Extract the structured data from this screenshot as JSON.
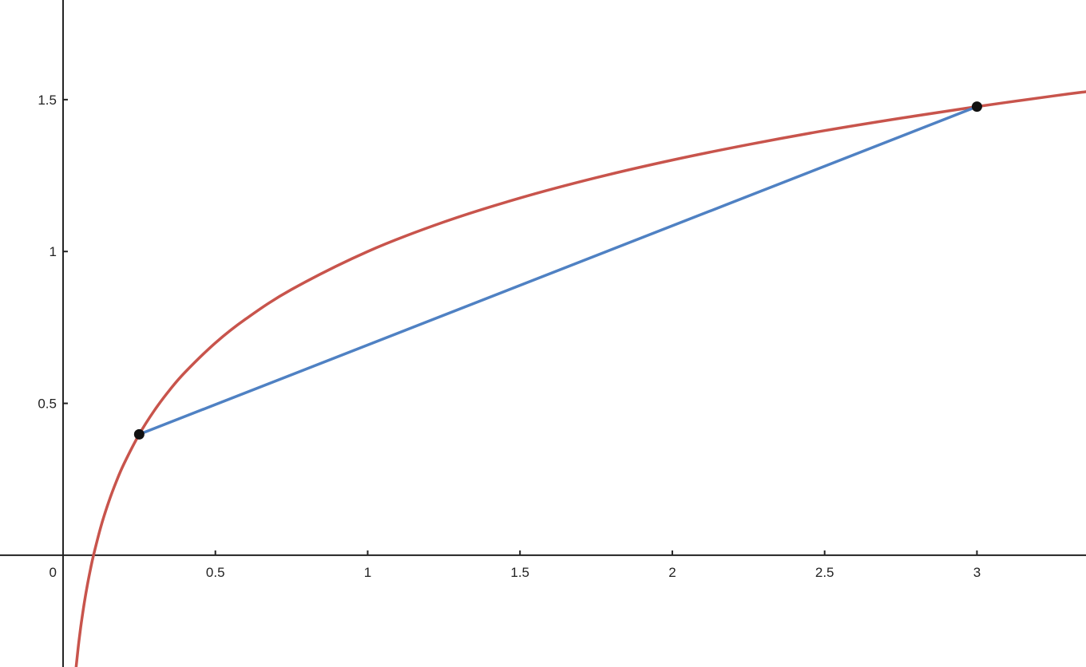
{
  "chart_data": {
    "type": "line",
    "title": "",
    "xlabel": "",
    "ylabel": "",
    "xlim": [
      -0.207,
      3.358
    ],
    "ylim": [
      -0.368,
      1.828
    ],
    "grid": false,
    "x_ticks": [
      0.5,
      1,
      1.5,
      2,
      2.5,
      3
    ],
    "x_tick_labels": [
      "0.5",
      "1",
      "1.5",
      "2",
      "2.5",
      "3"
    ],
    "y_ticks": [
      0.5,
      1,
      1.5
    ],
    "y_tick_labels": [
      "0.5",
      "1",
      "1.5"
    ],
    "origin_label": "0",
    "series": [
      {
        "kind": "curve",
        "color": "#c8544c",
        "points": [
          [
            0.043,
            -0.367
          ],
          [
            0.05,
            -0.301
          ],
          [
            0.055,
            -0.26
          ],
          [
            0.06,
            -0.222
          ],
          [
            0.07,
            -0.155
          ],
          [
            0.08,
            -0.097
          ],
          [
            0.09,
            -0.046
          ],
          [
            0.1,
            0
          ],
          [
            0.125,
            0.097
          ],
          [
            0.15,
            0.176
          ],
          [
            0.175,
            0.243
          ],
          [
            0.2,
            0.301
          ],
          [
            0.25,
            0.398
          ],
          [
            0.3,
            0.477
          ],
          [
            0.35,
            0.544
          ],
          [
            0.4,
            0.602
          ],
          [
            0.5,
            0.699
          ],
          [
            0.6,
            0.778
          ],
          [
            0.75,
            0.875
          ],
          [
            1,
            1
          ],
          [
            1.25,
            1.097
          ],
          [
            1.5,
            1.176
          ],
          [
            1.75,
            1.243
          ],
          [
            2,
            1.301
          ],
          [
            2.25,
            1.352
          ],
          [
            2.5,
            1.398
          ],
          [
            2.75,
            1.439
          ],
          [
            3,
            1.477
          ],
          [
            3.25,
            1.512
          ],
          [
            3.358,
            1.526
          ]
        ]
      },
      {
        "kind": "segment",
        "color": "#4f81c3",
        "points": [
          [
            0.25,
            0.398
          ],
          [
            3,
            1.477
          ]
        ]
      }
    ],
    "points": {
      "color": "#111111",
      "values": [
        [
          0.25,
          0.398
        ],
        [
          3,
          1.477
        ]
      ]
    }
  }
}
